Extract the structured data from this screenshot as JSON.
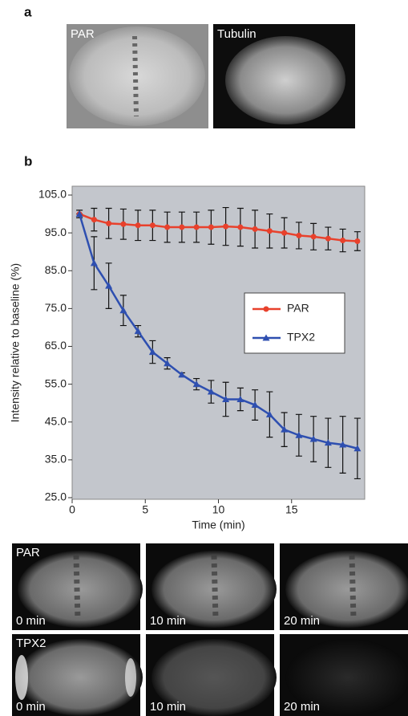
{
  "panel_a": {
    "label": "a",
    "images": [
      "PAR",
      "Tubulin"
    ]
  },
  "chart_data": {
    "type": "line",
    "panel_label": "b",
    "x_label": "Time (min)",
    "y_label": "Intensity relative to baseline (%)",
    "x": [
      0.5,
      1.5,
      2.5,
      3.5,
      4.5,
      5.5,
      6.5,
      7.5,
      8.5,
      9.5,
      10.5,
      11.5,
      12.5,
      13.5,
      14.5,
      15.5,
      16.5,
      17.5,
      18.5,
      19.5
    ],
    "series": [
      {
        "name": "PAR",
        "color": "#e8412c",
        "marker": "circle",
        "values": [
          100,
          98.5,
          97.5,
          97.3,
          97,
          97,
          96.5,
          96.5,
          96.5,
          96.5,
          96.7,
          96.5,
          96,
          95.5,
          95,
          94.3,
          94,
          93.5,
          93,
          92.8
        ],
        "errors": [
          0,
          3,
          4,
          4,
          4,
          4,
          4,
          4,
          4,
          4.5,
          5,
          5,
          5,
          4.5,
          4,
          3.5,
          3.5,
          3,
          3,
          2.5
        ]
      },
      {
        "name": "TPX2",
        "color": "#2e4fb0",
        "marker": "triangle",
        "values": [
          100,
          87,
          81,
          74.5,
          69,
          63.5,
          60.5,
          57.5,
          55,
          53,
          51,
          51,
          49.5,
          47,
          43,
          41.5,
          40.5,
          39.5,
          39,
          38
        ],
        "errors": [
          1,
          7,
          6,
          4,
          1.5,
          3,
          1.5,
          0.5,
          1.5,
          3,
          4.5,
          3,
          4,
          6,
          4.5,
          5.5,
          6,
          6.5,
          7.5,
          8
        ]
      }
    ],
    "xlim": [
      0,
      20
    ],
    "xticks": [
      0,
      5,
      10,
      15
    ],
    "ylim": [
      25,
      105
    ],
    "yticks": [
      {
        "value": 25,
        "label": "25.0"
      },
      {
        "value": 35,
        "label": "35.0"
      },
      {
        "value": 45,
        "label": "45.0"
      },
      {
        "value": 55,
        "label": "55.0"
      },
      {
        "value": 65,
        "label": "65.0"
      },
      {
        "value": 75,
        "label": "75.0"
      },
      {
        "value": 85,
        "label": "85.0"
      },
      {
        "value": 95,
        "label": "95.0"
      },
      {
        "value": 105,
        "label": "105.0"
      }
    ],
    "grid": false,
    "background": "#c3c6cc"
  },
  "panel_c": {
    "rows": [
      {
        "label": "PAR",
        "times": [
          "0 min",
          "10 min",
          "20 min"
        ]
      },
      {
        "label": "TPX2",
        "times": [
          "0 min",
          "10 min",
          "20 min"
        ]
      }
    ]
  }
}
